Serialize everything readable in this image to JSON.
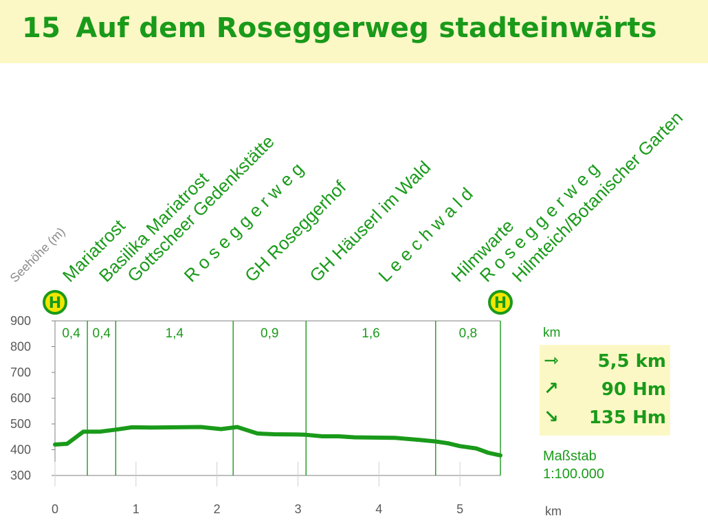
{
  "title": {
    "number": "15",
    "text": "Auf dem Roseggerweg stadteinwärts"
  },
  "chart_data": {
    "type": "area",
    "y_axis_label": "Seehöhe (m)",
    "x_unit": "km",
    "xlim": [
      0,
      5.5
    ],
    "ylim": [
      300,
      900
    ],
    "x_ticks": [
      0,
      1,
      2,
      3,
      4,
      5
    ],
    "y_ticks": [
      300,
      400,
      500,
      600,
      700,
      800,
      900
    ],
    "profile": [
      [
        0,
        420
      ],
      [
        0.15,
        423
      ],
      [
        0.35,
        470
      ],
      [
        0.55,
        470
      ],
      [
        0.75,
        478
      ],
      [
        0.95,
        487
      ],
      [
        1.2,
        486
      ],
      [
        1.5,
        487
      ],
      [
        1.8,
        488
      ],
      [
        2.05,
        480
      ],
      [
        2.25,
        488
      ],
      [
        2.35,
        478
      ],
      [
        2.5,
        463
      ],
      [
        2.7,
        460
      ],
      [
        3.0,
        459
      ],
      [
        3.1,
        458
      ],
      [
        3.3,
        452
      ],
      [
        3.5,
        452
      ],
      [
        3.7,
        448
      ],
      [
        4.2,
        446
      ],
      [
        4.5,
        438
      ],
      [
        4.7,
        432
      ],
      [
        4.85,
        425
      ],
      [
        5.0,
        414
      ],
      [
        5.2,
        405
      ],
      [
        5.35,
        388
      ],
      [
        5.5,
        378
      ]
    ],
    "segments": [
      {
        "start": 0,
        "end": 0.4,
        "distance": "0,4"
      },
      {
        "start": 0.4,
        "end": 0.75,
        "distance": "0,4"
      },
      {
        "start": 0.75,
        "end": 2.2,
        "distance": "1,4"
      },
      {
        "start": 2.2,
        "end": 3.1,
        "distance": "0,9"
      },
      {
        "start": 3.1,
        "end": 4.7,
        "distance": "1,6"
      },
      {
        "start": 4.7,
        "end": 5.5,
        "distance": "0,8"
      }
    ],
    "waypoints": [
      {
        "x": 0.05,
        "label": "Mariatrost"
      },
      {
        "x": 0.5,
        "label": "Basilika Mariatrost"
      },
      {
        "x": 0.85,
        "label": "Gottscheer Gedenkstätte"
      },
      {
        "x": 1.55,
        "label": "R o s e g g e r w e g"
      },
      {
        "x": 2.3,
        "label": "GH Roseggerhof"
      },
      {
        "x": 3.1,
        "label": "GH Häuserl im Wald"
      },
      {
        "x": 3.95,
        "label": "L e e c h w a l d"
      },
      {
        "x": 4.85,
        "label": "Hilmwarte"
      },
      {
        "x": 5.2,
        "label": "R o s e g g e r w e g"
      },
      {
        "x": 5.6,
        "label": "Hilmteich/Botanischer Garten"
      }
    ],
    "stops": [
      {
        "x": 0,
        "symbol": "H"
      },
      {
        "x": 5.5,
        "symbol": "H"
      }
    ]
  },
  "stats": {
    "unit_label": "km",
    "distance": {
      "icon": "⇾",
      "value": "5,5 km"
    },
    "ascent": {
      "icon": "↗",
      "value": "90 Hm"
    },
    "descent": {
      "icon": "↘",
      "value": "135 Hm"
    }
  },
  "scale": {
    "label": "Maßstab",
    "value": "1:100.000"
  },
  "colors": {
    "accent": "#1a9a1a",
    "title_bg": "#fbf8c6",
    "axis": "#7f7f7f",
    "stop_fill": "#f2e600"
  }
}
